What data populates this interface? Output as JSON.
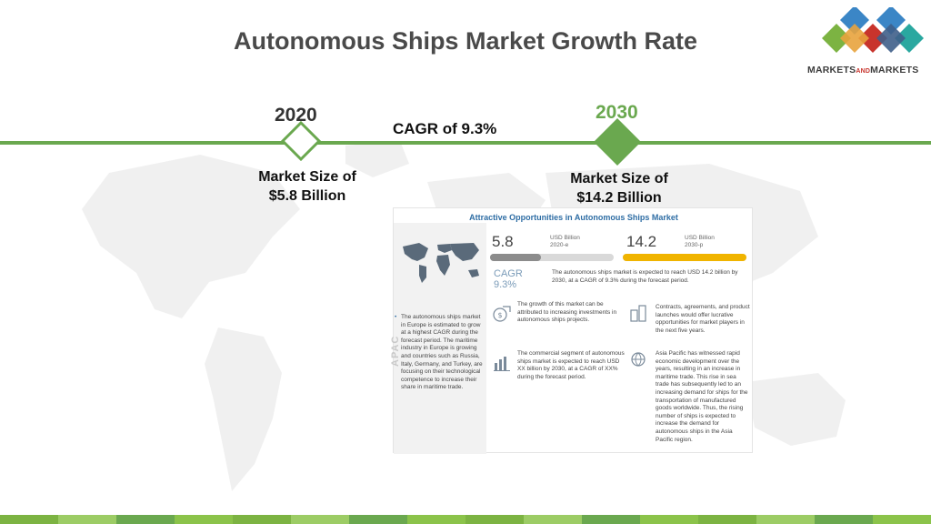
{
  "title": "Autonomous Ships Market Growth Rate",
  "logo": {
    "text_a": "MARKETS",
    "text_b": "AND",
    "text_c": "MARKETS"
  },
  "timeline": {
    "start_year": "2020",
    "end_year": "2030",
    "cagr_label": "CAGR of 9.3%",
    "start_size_line1": "Market Size of",
    "start_size_line2": "$5.8 Billion",
    "end_size_line1": "Market Size of",
    "end_size_line2": "$14.2 Billion"
  },
  "infographic": {
    "title": "Attractive Opportunities in Autonomous Ships Market",
    "stat_2020": {
      "value": "5.8",
      "unit": "USD Billion",
      "year": "2020-e",
      "share": 0.41
    },
    "stat_2030": {
      "value": "14.2",
      "unit": "USD Billion",
      "year": "2030-p",
      "share": 1.0
    },
    "cagr_label": "CAGR",
    "cagr_value": "9.3%",
    "cagr_desc": "The autonomous ships market is expected to reach USD 14.2 billion by 2030, at a CAGR of 9.3% during the forecast period.",
    "apac_label": "APAC",
    "europe_note": "The autonomous ships market in Europe is estimated to grow at a highest CAGR during the forecast period. The maritime industry in Europe is growing and countries such as Russia, Italy, Germany, and Turkey, are focusing on their technological competence to increase their share in maritime trade.",
    "point_1": "The growth of this market can be attributed to increasing investments in autonomous ships projects.",
    "point_2": "Contracts, agreements, and product launches would offer lucrative opportunities for market players in the next five years.",
    "point_3": "The commercial segment of autonomous ships market is expected to reach USD XX billion by 2030, at a CAGR of XX% during the forecast period.",
    "point_4": "Asia Pacific has witnessed rapid economic development over the years, resulting in an increase in maritime trade. This rise in sea trade has subsequently led to an increasing demand for ships for the transportation of manufactured goods worldwide. Thus, the rising number of ships is expected to increase the demand for autonomous ships in the Asia Pacific region."
  },
  "colors": {
    "accent_green": "#6aa84f",
    "logo_red": "#c8342c",
    "logo_blue": "#3b86c6",
    "logo_teal": "#2aa8a0",
    "logo_green": "#7cb342",
    "bar_yellow": "#f0b400",
    "info_blue": "#2e6da4"
  },
  "icons": [
    "world-map",
    "dollar-growth-icon",
    "building-chart-icon",
    "bar-chart-icon",
    "globe-hand-icon"
  ]
}
